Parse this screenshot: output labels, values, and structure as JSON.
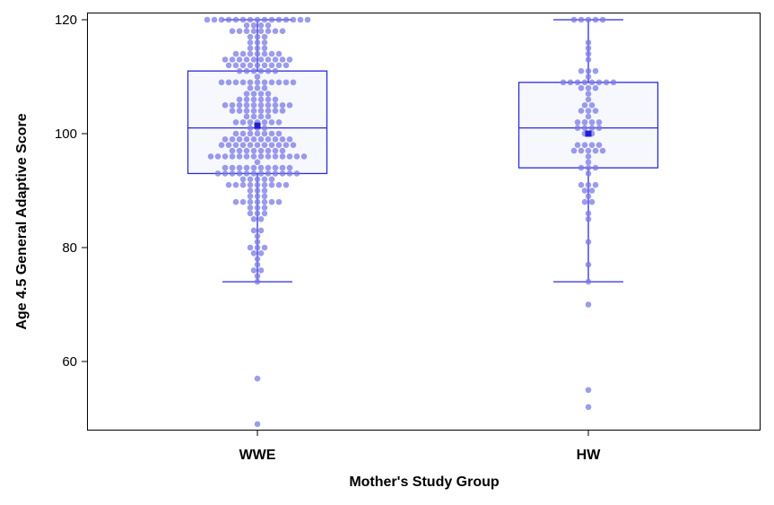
{
  "chart_data": {
    "type": "box",
    "title": "",
    "xlabel": "Mother's Study Group",
    "ylabel": "Age 4.5 General Adaptive Score",
    "ylim": [
      48,
      121.3
    ],
    "yticks": [
      60,
      80,
      100,
      120
    ],
    "grid": false,
    "colors": {
      "box_line": "#2b2bdc",
      "box_fill": "#f7f8fd",
      "dot": "#7b7be6",
      "mean_marker": "#2020d0",
      "frame": "#000000"
    },
    "groups": [
      {
        "name": "WWE",
        "q1": 93,
        "median": 101,
        "q3": 111,
        "mean": 101.4,
        "whisker_low": 74,
        "whisker_high": 120,
        "points": [
          [
            120,
            15
          ],
          [
            119,
            4
          ],
          [
            118,
            8
          ],
          [
            117,
            3
          ],
          [
            116,
            3
          ],
          [
            115,
            3
          ],
          [
            114,
            7
          ],
          [
            113,
            10
          ],
          [
            112,
            9
          ],
          [
            111,
            6
          ],
          [
            110,
            1
          ],
          [
            109,
            11
          ],
          [
            108,
            3
          ],
          [
            107,
            4
          ],
          [
            106,
            6
          ],
          [
            105,
            10
          ],
          [
            104,
            8
          ],
          [
            103,
            4
          ],
          [
            102,
            7
          ],
          [
            101,
            3
          ],
          [
            100,
            7
          ],
          [
            99,
            10
          ],
          [
            98,
            11
          ],
          [
            97,
            8
          ],
          [
            96,
            14
          ],
          [
            95,
            1
          ],
          [
            94,
            10
          ],
          [
            93,
            12
          ],
          [
            92,
            5
          ],
          [
            91,
            9
          ],
          [
            90,
            3
          ],
          [
            89,
            3
          ],
          [
            88,
            7
          ],
          [
            87,
            3
          ],
          [
            86,
            3
          ],
          [
            85,
            2
          ],
          [
            83,
            2
          ],
          [
            82,
            1
          ],
          [
            81,
            1
          ],
          [
            80,
            3
          ],
          [
            79,
            2
          ],
          [
            78,
            1
          ],
          [
            77,
            1
          ],
          [
            76,
            2
          ],
          [
            75,
            1
          ],
          [
            74,
            1
          ],
          [
            57,
            1
          ],
          [
            49,
            1
          ]
        ]
      },
      {
        "name": "HW",
        "q1": 94,
        "median": 101,
        "q3": 109,
        "mean": 100,
        "whisker_low": 74,
        "whisker_high": 120,
        "points": [
          [
            120,
            5
          ],
          [
            116,
            1
          ],
          [
            115,
            1
          ],
          [
            114,
            1
          ],
          [
            113,
            1
          ],
          [
            111,
            3
          ],
          [
            110,
            1
          ],
          [
            109,
            8
          ],
          [
            108,
            3
          ],
          [
            107,
            1
          ],
          [
            106,
            1
          ],
          [
            105,
            2
          ],
          [
            104,
            3
          ],
          [
            103,
            1
          ],
          [
            102,
            4
          ],
          [
            101,
            4
          ],
          [
            100,
            2
          ],
          [
            98,
            4
          ],
          [
            97,
            5
          ],
          [
            96,
            1
          ],
          [
            95,
            1
          ],
          [
            94,
            3
          ],
          [
            93,
            1
          ],
          [
            91,
            3
          ],
          [
            90,
            2
          ],
          [
            89,
            1
          ],
          [
            88,
            2
          ],
          [
            86,
            1
          ],
          [
            85,
            1
          ],
          [
            81,
            1
          ],
          [
            77,
            1
          ],
          [
            74,
            1
          ],
          [
            70,
            1
          ],
          [
            55,
            1
          ],
          [
            52,
            1
          ]
        ]
      }
    ]
  }
}
